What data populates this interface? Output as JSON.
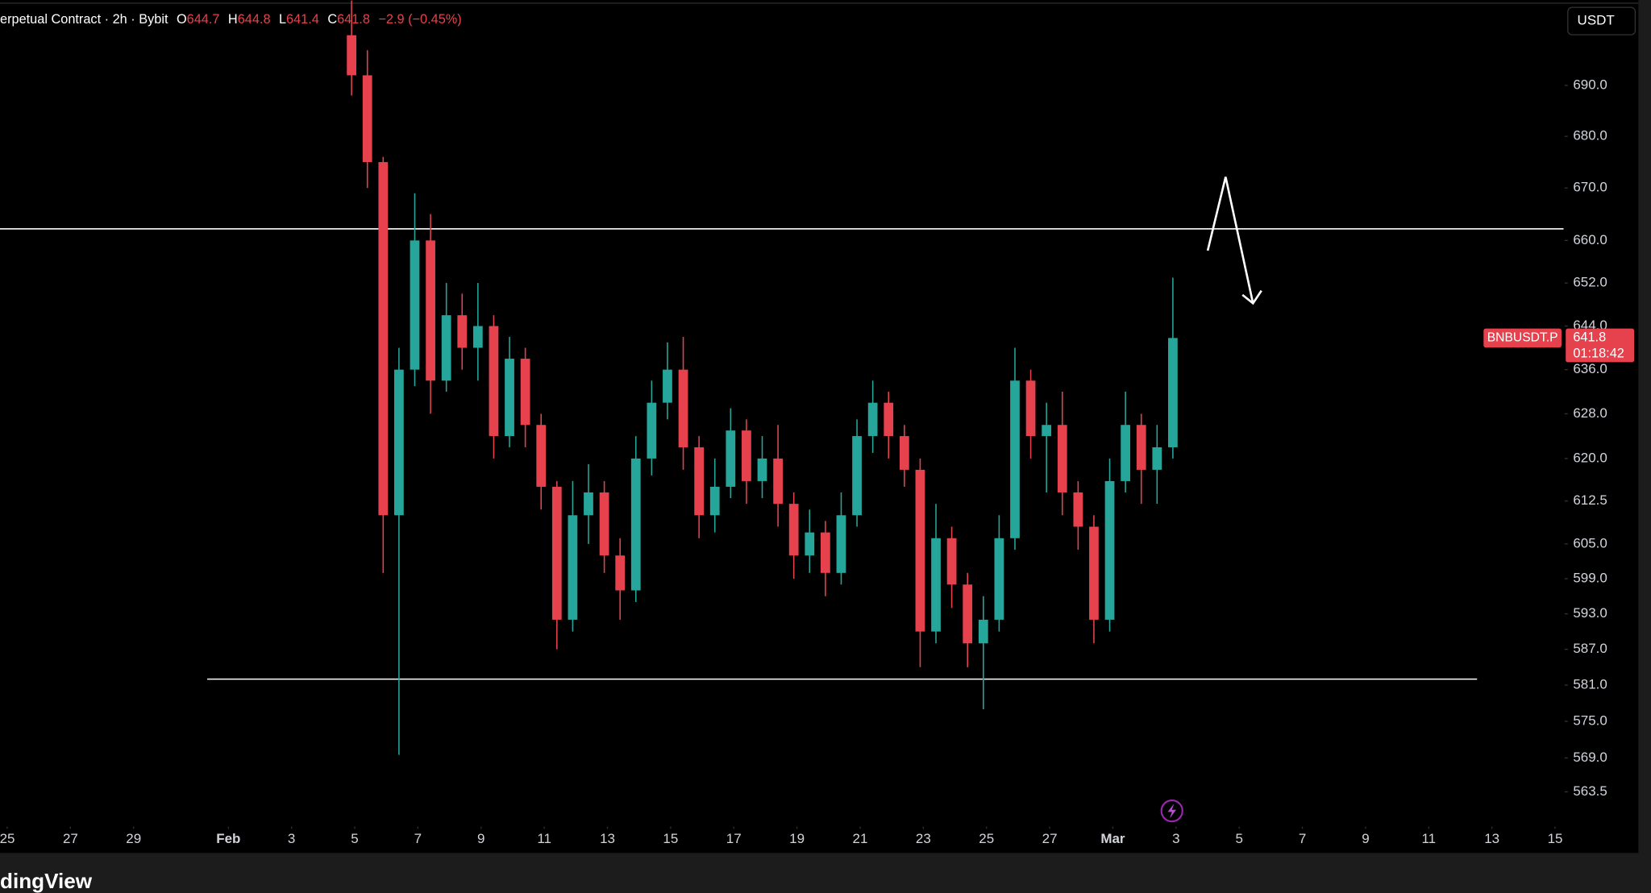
{
  "header": {
    "title": "erpetual Contract · 2h · Bybit",
    "ohlc": [
      {
        "label": "O",
        "value": 644.7
      },
      {
        "label": "H",
        "value": 644.8
      },
      {
        "label": "L",
        "value": 641.4
      },
      {
        "label": "C",
        "value": 641.8
      }
    ],
    "change": "−2.9 (−0.45%)"
  },
  "currency": "USDT",
  "brand": "dingView",
  "chart_data": {
    "type": "candlestick",
    "symbol": "BNBUSDT.P",
    "last_price": 641.8,
    "countdown": "01:18:42",
    "up_color": "#26a69a",
    "down_color": "#e5424d",
    "log_scale": true,
    "xlim": [
      -7.23,
      42.27
    ],
    "ylim": [
      557.9,
      707.1
    ],
    "xticks": [
      {
        "value": -7,
        "label": "25"
      },
      {
        "value": -5,
        "label": "27"
      },
      {
        "value": -3,
        "label": "29"
      },
      {
        "value": 0,
        "label": "Feb"
      },
      {
        "value": 2,
        "label": "3"
      },
      {
        "value": 4,
        "label": "5"
      },
      {
        "value": 6,
        "label": "7"
      },
      {
        "value": 8,
        "label": "9"
      },
      {
        "value": 10,
        "label": "11"
      },
      {
        "value": 12,
        "label": "13"
      },
      {
        "value": 14,
        "label": "15"
      },
      {
        "value": 16,
        "label": "17"
      },
      {
        "value": 18,
        "label": "19"
      },
      {
        "value": 20,
        "label": "21"
      },
      {
        "value": 22,
        "label": "23"
      },
      {
        "value": 24,
        "label": "25"
      },
      {
        "value": 26,
        "label": "27"
      },
      {
        "value": 28,
        "label": "Mar"
      },
      {
        "value": 30,
        "label": "3"
      },
      {
        "value": 32,
        "label": "5"
      },
      {
        "value": 34,
        "label": "7"
      },
      {
        "value": 36,
        "label": "9"
      },
      {
        "value": 38,
        "label": "11"
      },
      {
        "value": 40,
        "label": "13"
      },
      {
        "value": 42,
        "label": "15"
      }
    ],
    "yticks": [
      {
        "value": 690,
        "label": "690.0"
      },
      {
        "value": 680,
        "label": "680.0"
      },
      {
        "value": 670,
        "label": "670.0"
      },
      {
        "value": 660,
        "label": "660.0"
      },
      {
        "value": 652,
        "label": "652.0"
      },
      {
        "value": 644,
        "label": "644.0"
      },
      {
        "value": 636,
        "label": "636.0"
      },
      {
        "value": 628,
        "label": "628.0"
      },
      {
        "value": 620,
        "label": "620.0"
      },
      612.5,
      {
        "value": 605,
        "label": "605.0"
      },
      {
        "value": 599,
        "label": "599.0"
      },
      {
        "value": 593,
        "label": "593.0"
      },
      {
        "value": 587,
        "label": "587.0"
      },
      {
        "value": 581,
        "label": "581.0"
      },
      {
        "value": 575,
        "label": "575.0"
      },
      {
        "value": 569,
        "label": "569.0"
      },
      563.5
    ],
    "hlines": [
      {
        "y": 662.2,
        "x": [
          -7.23,
          42.27
        ]
      },
      {
        "y": 582,
        "x": [
          -0.67,
          39.53
        ]
      }
    ],
    "x": [
      3.9,
      4.4,
      4.9,
      5.4,
      5.9,
      6.4,
      6.9,
      7.4,
      7.9,
      8.4,
      8.9,
      9.4,
      9.9,
      10.4,
      10.9,
      11.4,
      11.9,
      12.4,
      12.9,
      13.4,
      13.9,
      14.4,
      14.9,
      15.4,
      15.9,
      16.4,
      16.9,
      17.4,
      17.9,
      18.4,
      18.9,
      19.4,
      19.9,
      20.4,
      20.9,
      21.4,
      21.9,
      22.4,
      22.9,
      23.4,
      23.9,
      24.4,
      24.9,
      25.4,
      25.9,
      26.4,
      26.9,
      27.4,
      27.9,
      28.4,
      28.9,
      29.4,
      29.9
    ],
    "open": [
      700,
      692,
      675,
      610,
      636,
      660,
      634,
      646,
      640,
      644,
      624,
      638,
      626,
      615,
      592,
      610,
      614,
      603,
      597,
      620,
      630,
      636,
      622,
      610,
      615,
      625,
      616,
      620,
      612,
      603,
      607,
      600,
      610,
      624,
      630,
      624,
      618,
      590,
      606,
      598,
      588,
      592,
      606,
      634,
      624,
      626,
      614,
      608,
      592,
      616,
      626,
      618,
      622
    ],
    "high": [
      707,
      697,
      676,
      640,
      669,
      665,
      652,
      650,
      652,
      646,
      642,
      640,
      628,
      616,
      616,
      619,
      616,
      606,
      624,
      634,
      641,
      642,
      624,
      620,
      629,
      627,
      624,
      626,
      614,
      611,
      609,
      614,
      627,
      634,
      632,
      626,
      620,
      612,
      608,
      600,
      596,
      610,
      640,
      636,
      630,
      632,
      616,
      610,
      620,
      632,
      628,
      626,
      653
    ],
    "low": [
      688,
      670,
      600,
      569.5,
      633,
      628,
      632,
      636,
      634,
      620,
      622,
      622,
      611,
      587,
      590,
      605,
      600,
      592,
      595,
      617,
      627,
      618,
      606,
      607,
      613,
      612,
      613,
      608,
      599,
      600,
      596,
      598,
      608,
      621,
      620,
      615,
      584,
      588,
      594,
      584,
      577,
      590,
      604,
      620,
      614,
      610,
      604,
      588,
      590,
      614,
      612,
      612,
      620
    ],
    "close": [
      692,
      675,
      610,
      636,
      660,
      634,
      646,
      640,
      644,
      624,
      638,
      626,
      615,
      592,
      610,
      614,
      603,
      597,
      620,
      630,
      636,
      622,
      610,
      615,
      625,
      616,
      620,
      612,
      603,
      607,
      600,
      610,
      624,
      630,
      624,
      618,
      590,
      606,
      598,
      588,
      592,
      606,
      634,
      624,
      626,
      614,
      608,
      592,
      616,
      626,
      618,
      622,
      641.8
    ]
  }
}
